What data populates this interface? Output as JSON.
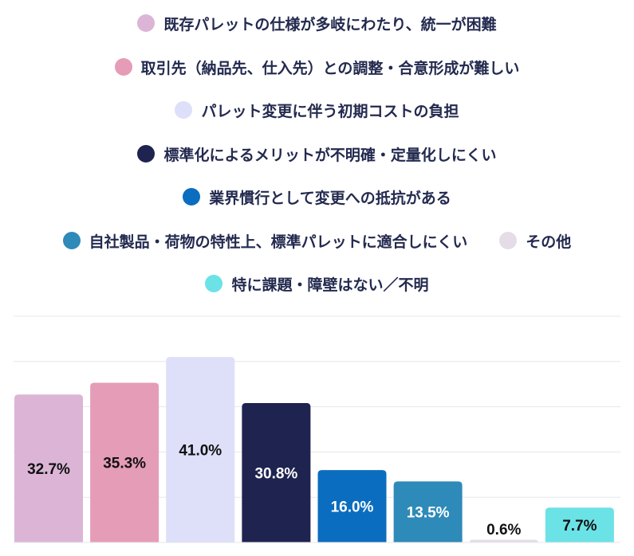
{
  "chart_data": {
    "type": "bar",
    "title": "",
    "xlabel": "",
    "ylabel": "",
    "ylim": [
      0,
      50
    ],
    "grid": true,
    "legend_position": "top-center",
    "categories": [
      "既存パレットの仕様が多岐にわたり、統一が困難",
      "取引先（納品先、仕入先）との調整・合意形成が難しい",
      "パレット変更に伴う初期コストの負担",
      "標準化によるメリットが不明確・定量化しにくい",
      "業界慣行として変更への抵抗がある",
      "自社製品・荷物の特性上、標準パレットに適合しにくい",
      "その他",
      "特に課題・障壁はない／不明"
    ],
    "values": [
      32.7,
      35.3,
      41.0,
      30.8,
      16.0,
      13.5,
      0.6,
      7.7
    ],
    "value_labels": [
      "32.7%",
      "35.3%",
      "41.0%",
      "30.8%",
      "16.0%",
      "13.5%",
      "0.6%",
      "7.7%"
    ],
    "colors": [
      "#dcb5d6",
      "#e59cb6",
      "#dedff9",
      "#1f2350",
      "#0b6dbf",
      "#2e8ab8",
      "#e4dde8",
      "#6be2e6"
    ],
    "label_colors": [
      "#111111",
      "#111111",
      "#111111",
      "#ffffff",
      "#ffffff",
      "#ffffff",
      "#111111",
      "#111111"
    ]
  }
}
